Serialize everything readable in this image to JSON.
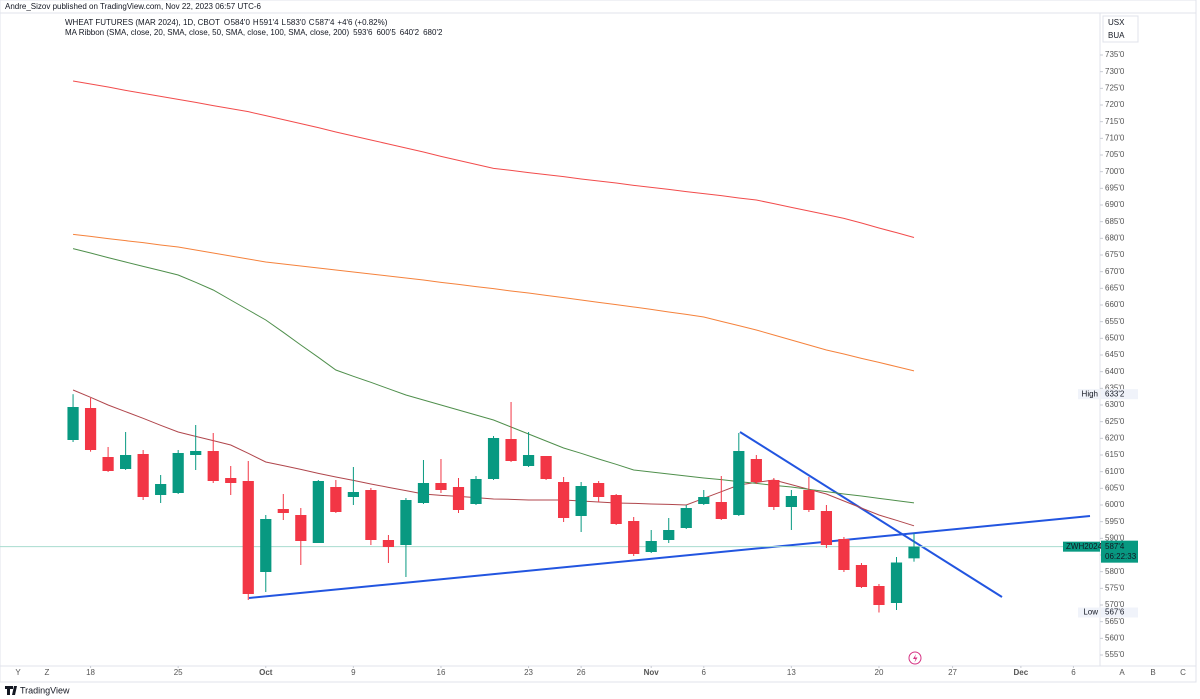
{
  "page": {
    "published": "Andre_Sizov published on TradingView.com, Nov 22, 2023 06:57 UTC-6",
    "currency": "USX",
    "unit": "BUA",
    "toolbar": [
      "Y",
      "Z"
    ],
    "scale_buttons": [
      "A",
      "B",
      "C"
    ],
    "logo": "TradingView"
  },
  "chart_data": {
    "type": "candlestick",
    "symbol_line": "WHEAT FUTURES (MAR 2024), 1D, CBOT",
    "ohlc_legend": [
      [
        "O",
        "584'0"
      ],
      [
        "H",
        "591'4"
      ],
      [
        "L",
        "583'0"
      ],
      [
        "C",
        "587'4"
      ]
    ],
    "change": "+4'6 (+0.82%)",
    "indicator": "MA Ribbon (SMA, close, 20, SMA, close, 50, SMA, close, 100, SMA, close, 200)",
    "up_color": "#089981",
    "down_color": "#f23645",
    "categories": [
      null,
      null,
      null,
      null,
      null,
      null,
      null,
      null,
      null,
      null,
      null,
      null,
      null,
      null,
      null,
      null,
      null,
      null,
      null,
      null,
      null,
      null,
      null,
      null,
      null,
      null,
      null,
      null,
      null,
      null,
      null,
      null,
      null,
      null,
      null,
      null,
      null,
      null,
      null,
      null,
      null,
      null,
      null,
      null,
      null,
      null,
      null,
      null,
      null
    ],
    "open": [
      619.5,
      629.1,
      614.4,
      610.8,
      615.3,
      603,
      603.6,
      615,
      616.2,
      608.1,
      607.2,
      579.9,
      598.8,
      597,
      588.6,
      605.4,
      602.4,
      604.5,
      589.5,
      588,
      600.6,
      606.6,
      605.4,
      600.3,
      607.8,
      619.8,
      611.7,
      614.7,
      606.9,
      596.7,
      606.6,
      603,
      595.2,
      585.9,
      589.5,
      593.1,
      600.3,
      600.9,
      597,
      613.8,
      607.5,
      599.4,
      604.5,
      598.2,
      589.8,
      582,
      575.7,
      570.6,
      584
    ],
    "high": [
      633.25,
      632.1,
      617.4,
      621.9,
      616.5,
      609,
      616.5,
      624,
      621.6,
      611.7,
      613.2,
      597,
      603.3,
      599.1,
      607.5,
      607.5,
      611.4,
      605.1,
      591,
      602.1,
      613.5,
      613.8,
      608.1,
      608.7,
      620.7,
      630.9,
      621.9,
      614.7,
      608.4,
      606.9,
      607.2,
      603.3,
      596.4,
      592.5,
      596.1,
      600,
      604.5,
      608.7,
      621.6,
      615,
      608.1,
      604.5,
      608.4,
      600,
      590.4,
      582.6,
      576.3,
      584.4,
      591.5
    ],
    "low": [
      618.9,
      616,
      609.9,
      610.5,
      601.5,
      600.6,
      603.3,
      610.5,
      606.6,
      603,
      571.5,
      573.9,
      595.5,
      582,
      588.6,
      597.6,
      600,
      588,
      582.6,
      578.4,
      600.3,
      603.6,
      597.6,
      600,
      607.5,
      612.9,
      611.4,
      607.5,
      594.9,
      591.9,
      600.9,
      594,
      584.7,
      585.6,
      588.6,
      592.8,
      600,
      595.5,
      596.7,
      606.3,
      598.5,
      592.5,
      597.9,
      587.1,
      579.9,
      575.1,
      567.75,
      568.5,
      583
    ],
    "close": [
      629.4,
      616.5,
      610.2,
      615,
      602.4,
      606.3,
      615.6,
      616.2,
      607.2,
      606.6,
      573.3,
      595.8,
      597.6,
      589.2,
      607.2,
      597.9,
      603.9,
      589.5,
      587.4,
      601.5,
      606.6,
      604.5,
      598.5,
      607.8,
      620.1,
      613.2,
      615,
      607.8,
      596.1,
      605.7,
      602.4,
      594.3,
      585.3,
      589.2,
      592.5,
      599.1,
      602.4,
      595.8,
      616.2,
      606.9,
      599.4,
      602.7,
      598.5,
      588,
      580.5,
      575.4,
      570,
      582.75,
      587.5
    ],
    "ma_lines": [
      {
        "color": "#b0464c",
        "last_label": "593'6",
        "values": [
          634.5,
          632.3,
          630.0,
          628.0,
          626.0,
          623.9,
          621.9,
          620.6,
          619.3,
          618.0,
          615.5,
          612.9,
          611.8,
          610.7,
          609.5,
          608.4,
          607.4,
          606.3,
          605.3,
          604.3,
          603.3,
          602.9,
          602.6,
          602.2,
          601.8,
          601.7,
          601.5,
          601.5,
          601.5,
          601.2,
          600.9,
          600.6,
          600.5,
          600.3,
          600.2,
          600.0,
          602.0,
          604.0,
          606.0,
          606.8,
          607.5,
          606.1,
          604.7,
          603.3,
          601.2,
          599.1,
          597.0,
          595.4,
          593.75
        ]
      },
      {
        "color": "#4f8f4c",
        "last_label": "600'5",
        "values": [
          676.9,
          675.6,
          674.2,
          672.9,
          671.6,
          670.3,
          669.0,
          666.8,
          664.5,
          661.5,
          658.5,
          655.5,
          651.8,
          648.0,
          644.3,
          640.5,
          638.6,
          636.8,
          634.9,
          633.0,
          631.5,
          630.0,
          628.5,
          627.0,
          625.5,
          623.4,
          621.3,
          619.2,
          617.1,
          615.5,
          613.8,
          612.2,
          610.5,
          609.9,
          609.3,
          608.7,
          608.1,
          607.6,
          607.0,
          606.5,
          605.9,
          605.4,
          604.7,
          604.0,
          603.3,
          602.7,
          602.0,
          601.3,
          600.625
        ]
      },
      {
        "color": "#f5823c",
        "last_label": "640'2",
        "values": [
          681.2,
          680.6,
          679.9,
          679.3,
          678.7,
          678.0,
          677.4,
          676.5,
          675.6,
          674.7,
          673.8,
          672.9,
          672.3,
          671.7,
          671.1,
          670.5,
          669.9,
          669.3,
          668.7,
          668.1,
          667.5,
          666.8,
          666.2,
          665.5,
          664.9,
          664.2,
          663.6,
          662.9,
          662.2,
          661.5,
          660.8,
          660.1,
          659.4,
          658.7,
          657.9,
          657.2,
          656.4,
          655.1,
          653.8,
          652.5,
          651.0,
          649.5,
          648.0,
          646.5,
          645.3,
          644.0,
          642.8,
          641.5,
          640.25
        ]
      },
      {
        "color": "#f24c4c",
        "last_label": "680'2",
        "values": [
          727.2,
          726.3,
          725.4,
          724.4,
          723.5,
          722.6,
          721.7,
          720.8,
          719.8,
          718.9,
          718.0,
          716.8,
          715.6,
          714.4,
          713.2,
          711.9,
          710.7,
          709.5,
          708.3,
          707.1,
          705.9,
          704.6,
          703.4,
          702.2,
          701.0,
          700.4,
          699.7,
          699.1,
          698.5,
          697.8,
          697.2,
          696.6,
          695.9,
          695.3,
          694.7,
          694.0,
          693.4,
          692.8,
          692.1,
          691.5,
          690.4,
          689.3,
          688.2,
          687.1,
          686.0,
          684.6,
          683.1,
          681.7,
          680.25
        ]
      }
    ],
    "high_marker": {
      "title": "High",
      "value": 633.25,
      "label": "633'2"
    },
    "low_marker": {
      "title": "Low",
      "value": 567.75,
      "label": "567'6"
    },
    "last_price": {
      "symbol": "ZWH2024",
      "label": "587'4",
      "countdown": "06:22:33"
    },
    "xlim": [
      -4.17,
      57.76
    ],
    "xticks": [
      {
        "value": 1,
        "label": "18"
      },
      {
        "value": 6,
        "label": "25"
      },
      {
        "value": 11,
        "label": "Oct"
      },
      {
        "value": 16,
        "label": "9"
      },
      {
        "value": 21,
        "label": "16"
      },
      {
        "value": 26,
        "label": "23"
      },
      {
        "value": 29,
        "label": "26"
      },
      {
        "value": 33,
        "label": "Nov"
      },
      {
        "value": 36,
        "label": "6"
      },
      {
        "value": 41,
        "label": "13"
      },
      {
        "value": 46,
        "label": "20"
      },
      {
        "value": 50.2,
        "label": "27"
      },
      {
        "value": 54.1,
        "label": "Dec"
      },
      {
        "value": 57.1,
        "label": "6"
      }
    ],
    "ylim": [
      552,
      751.5
    ],
    "yticks": [
      {
        "value": 555,
        "label": "555'0"
      },
      {
        "value": 560,
        "label": "560'0"
      },
      {
        "value": 565,
        "label": "565'0"
      },
      {
        "value": 570,
        "label": "570'0"
      },
      {
        "value": 575,
        "label": "575'0"
      },
      {
        "value": 580,
        "label": "580'0"
      },
      {
        "value": 585,
        "label": "585'0"
      },
      {
        "value": 590,
        "label": "590'0"
      },
      {
        "value": 595,
        "label": "595'0"
      },
      {
        "value": 600,
        "label": "600'0"
      },
      {
        "value": 605,
        "label": "605'0"
      },
      {
        "value": 610,
        "label": "610'0"
      },
      {
        "value": 615,
        "label": "615'0"
      },
      {
        "value": 620,
        "label": "620'0"
      },
      {
        "value": 625,
        "label": "625'0"
      },
      {
        "value": 630,
        "label": "630'0"
      },
      {
        "value": 635,
        "label": "635'0"
      },
      {
        "value": 640,
        "label": "640'0"
      },
      {
        "value": 645,
        "label": "645'0"
      },
      {
        "value": 650,
        "label": "650'0"
      },
      {
        "value": 655,
        "label": "655'0"
      },
      {
        "value": 660,
        "label": "660'0"
      },
      {
        "value": 665,
        "label": "665'0"
      },
      {
        "value": 670,
        "label": "670'0"
      },
      {
        "value": 675,
        "label": "675'0"
      },
      {
        "value": 680,
        "label": "680'0"
      },
      {
        "value": 685,
        "label": "685'0"
      },
      {
        "value": 690,
        "label": "690'0"
      },
      {
        "value": 695,
        "label": "695'0"
      },
      {
        "value": 700,
        "label": "700'0"
      },
      {
        "value": 705,
        "label": "705'0"
      },
      {
        "value": 710,
        "label": "710'0"
      },
      {
        "value": 715,
        "label": "715'0"
      },
      {
        "value": 720,
        "label": "720'0"
      },
      {
        "value": 725,
        "label": "725'0"
      },
      {
        "value": 730,
        "label": "730'0"
      },
      {
        "value": 735,
        "label": "735'0"
      }
    ],
    "grid": false
  }
}
